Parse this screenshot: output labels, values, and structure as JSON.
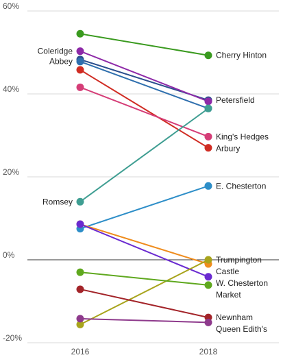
{
  "chart_data": {
    "type": "line",
    "title": "",
    "xlabel": "",
    "ylabel": "",
    "x": [
      "2016",
      "2018"
    ],
    "ylim": [
      -20,
      60
    ],
    "yticks": [
      "-20%",
      "0%",
      "20%",
      "40%",
      "60%"
    ],
    "grid": true,
    "legend": "none",
    "series": [
      {
        "name": "Cherry Hinton",
        "values": [
          54.5,
          49.3
        ],
        "color": "#3a9a1f",
        "left_label": ""
      },
      {
        "name": "Petersfield",
        "values": [
          48.3,
          38.5
        ],
        "color": "#2c4f8e",
        "left_label": "Abbey"
      },
      {
        "name": "",
        "values": [
          50.3,
          38.2
        ],
        "color": "#8e2aa8",
        "left_label": "Coleridge"
      },
      {
        "name": "Arbury",
        "values": [
          45.8,
          27.0
        ],
        "color": "#d02c23",
        "left_label": ""
      },
      {
        "name": "King's Hedges",
        "values": [
          41.6,
          29.7
        ],
        "color": "#d53d77",
        "left_label": ""
      },
      {
        "name": "",
        "values": [
          47.8,
          36.5
        ],
        "color": "#2f6fae",
        "left_label": ""
      },
      {
        "name": "",
        "values": [
          14.0,
          36.5
        ],
        "color": "#3f9e92",
        "left_label": "Romsey"
      },
      {
        "name": "E. Chesterton",
        "values": [
          7.5,
          17.8
        ],
        "color": "#2d8ec8",
        "left_label": ""
      },
      {
        "name": "Castle",
        "values": [
          8.6,
          -1.0
        ],
        "color": "#ef8c1d",
        "left_label": ""
      },
      {
        "name": "W. Chesterton",
        "values": [
          8.6,
          -4.1
        ],
        "color": "#6a2ad0",
        "left_label": ""
      },
      {
        "name": "Trumpington",
        "values": [
          -15.6,
          0.0
        ],
        "color": "#a8a41c",
        "left_label": ""
      },
      {
        "name": "Market",
        "values": [
          -3.0,
          -6.1
        ],
        "color": "#5fa81e",
        "left_label": ""
      },
      {
        "name": "Newnham",
        "values": [
          -7.1,
          -13.9
        ],
        "color": "#a32429",
        "left_label": ""
      },
      {
        "name": "Queen Edith's",
        "values": [
          -14.2,
          -15.1
        ],
        "color": "#8e3a8c",
        "left_label": ""
      }
    ]
  }
}
